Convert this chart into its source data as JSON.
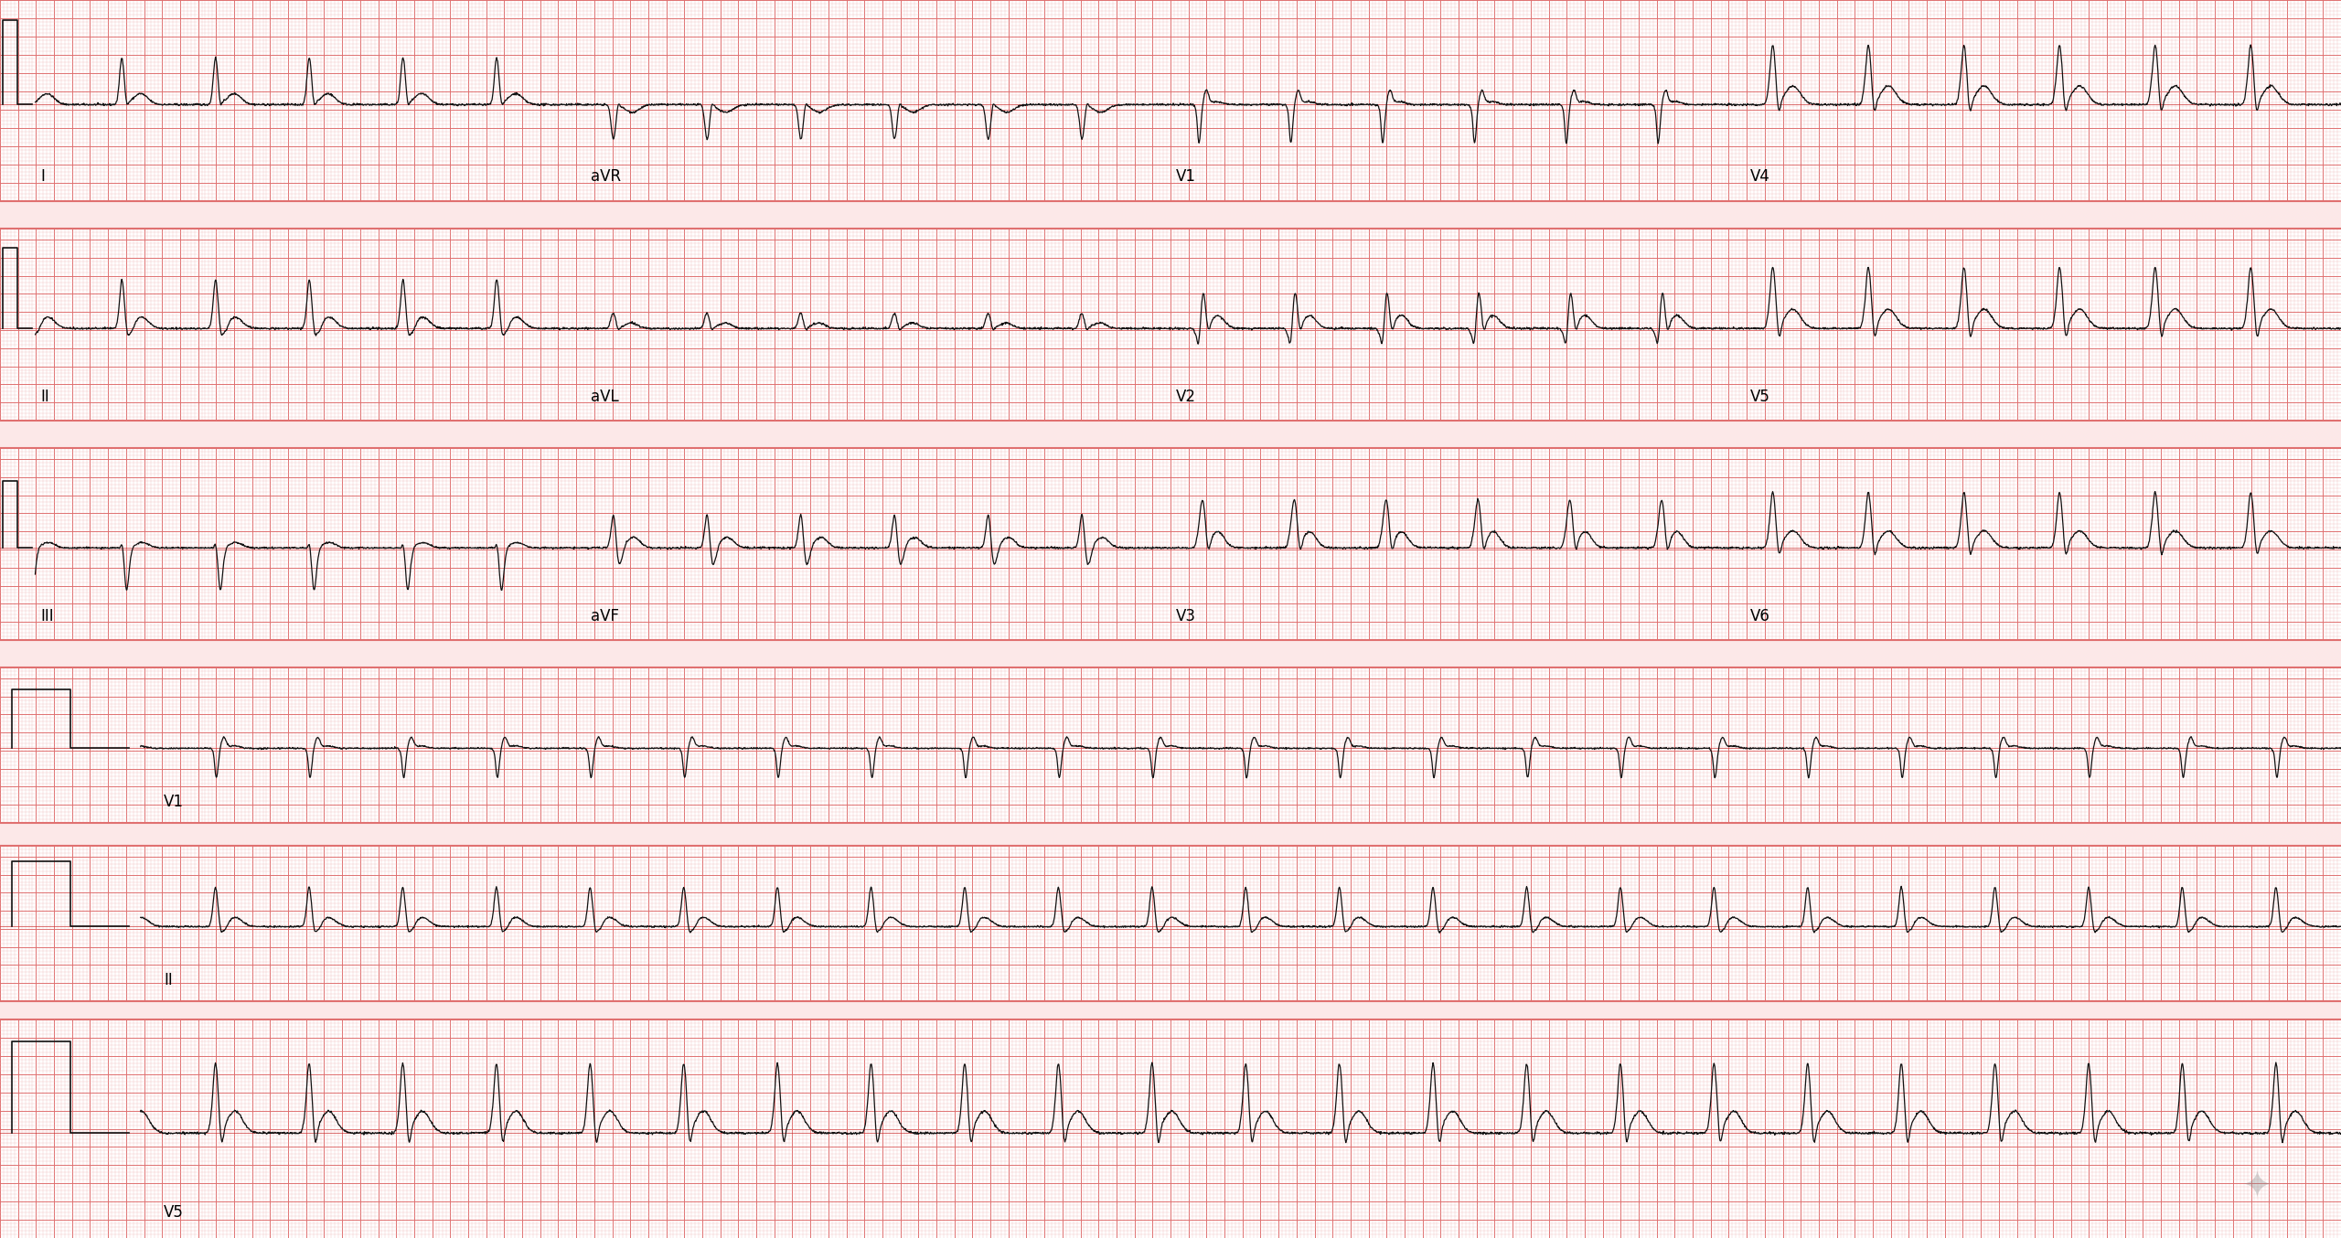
{
  "bg_color": "#fce8e8",
  "grid_major_color": "#e07070",
  "grid_minor_color": "#f0b8b8",
  "ecg_color": "#111111",
  "red_line_color": "#cc3333",
  "white_band_color": "#ffffff",
  "fig_width": 25.6,
  "fig_height": 13.54,
  "heart_rate": 150,
  "fs": 500,
  "row_labels_4lead": [
    [
      "I",
      "aVR",
      "V1",
      "V4"
    ],
    [
      "II",
      "aVL",
      "V2",
      "V5"
    ],
    [
      "III",
      "aVF",
      "V3",
      "V6"
    ]
  ],
  "row_labels_rhythm": [
    "V1",
    "II",
    "V5"
  ],
  "label_fontsize": 12
}
